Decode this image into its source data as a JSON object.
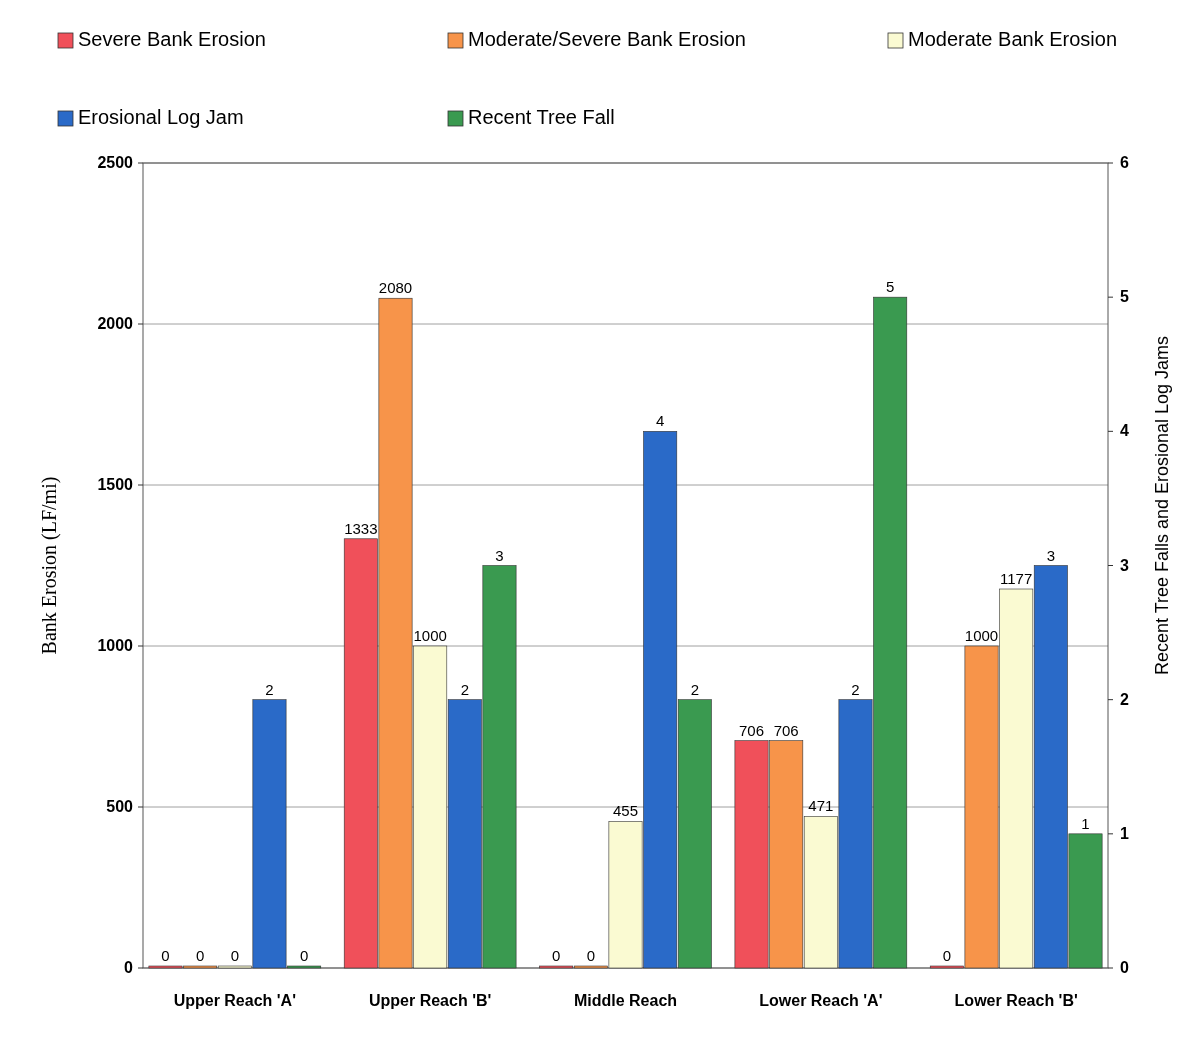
{
  "chart_data": {
    "type": "bar",
    "categories": [
      "Upper Reach 'A'",
      "Upper Reach 'B'",
      "Middle Reach",
      "Lower Reach 'A'",
      "Lower Reach 'B'"
    ],
    "series": [
      {
        "name": "Severe Bank Erosion",
        "color": "#f0505a",
        "values": [
          0,
          1333,
          0,
          706,
          0
        ]
      },
      {
        "name": "Moderate/Severe Bank Erosion",
        "color": "#f7944a",
        "values": [
          0,
          2080,
          0,
          706,
          1000
        ]
      },
      {
        "name": "Moderate Bank Erosion",
        "color": "#fafad2",
        "values": [
          0,
          1000,
          455,
          471,
          1177
        ]
      },
      {
        "name": "Erosional Log Jam",
        "color": "#2a6ac8",
        "axis": "y2",
        "values": [
          2,
          2,
          4,
          2,
          3
        ]
      },
      {
        "name": "Recent Tree Fall",
        "color": "#3a9a50",
        "axis": "y2",
        "values": [
          0,
          3,
          2,
          5,
          1
        ]
      }
    ],
    "ylabel": "Bank Erosion (LF/mi)",
    "y2label": "Recent Tree Falls and Erosional Log Jams",
    "ylim": [
      0,
      2500
    ],
    "yticks": [
      0,
      500,
      1000,
      1500,
      2000,
      2500
    ],
    "y2lim": [
      0,
      6
    ],
    "y2ticks": [
      0,
      1,
      2,
      3,
      4,
      5,
      6
    ],
    "grid": "y",
    "legend": "top",
    "data_labels": true
  }
}
